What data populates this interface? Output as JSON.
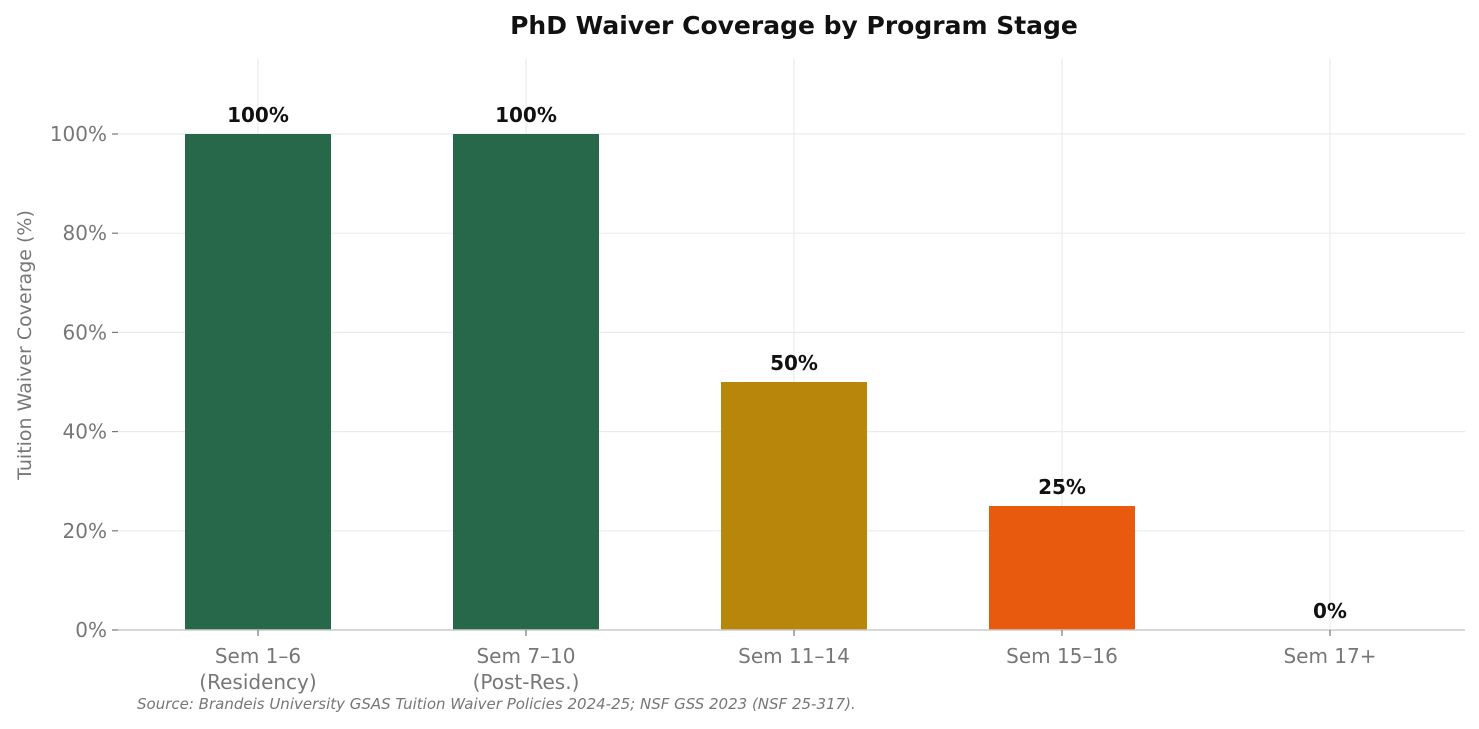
{
  "chart_data": {
    "type": "bar",
    "title": "PhD Waiver Coverage by Program Stage",
    "xlabel": "",
    "ylabel": "Tuition Waiver Coverage (%)",
    "categories": [
      [
        "Sem 1–6",
        "(Residency)"
      ],
      [
        "Sem 7–10",
        "(Post-Res.)"
      ],
      [
        "Sem 11–14"
      ],
      [
        "Sem 15–16"
      ],
      [
        "Sem 17+"
      ]
    ],
    "values": [
      100,
      100,
      50,
      25,
      0
    ],
    "value_labels": [
      "100%",
      "100%",
      "50%",
      "25%",
      "0%"
    ],
    "colors": [
      "#27684a",
      "#27684a",
      "#b8860b",
      "#e85a0e",
      "#e85a0e"
    ],
    "ylim": [
      0,
      115
    ],
    "yticks": [
      0,
      20,
      40,
      60,
      80,
      100
    ],
    "ytick_labels": [
      "0%",
      "20%",
      "40%",
      "60%",
      "80%",
      "100%"
    ],
    "grid": true,
    "source": "Source: Brandeis University GSAS Tuition Waiver Policies 2024-25; NSF GSS 2023 (NSF 25-317)."
  }
}
